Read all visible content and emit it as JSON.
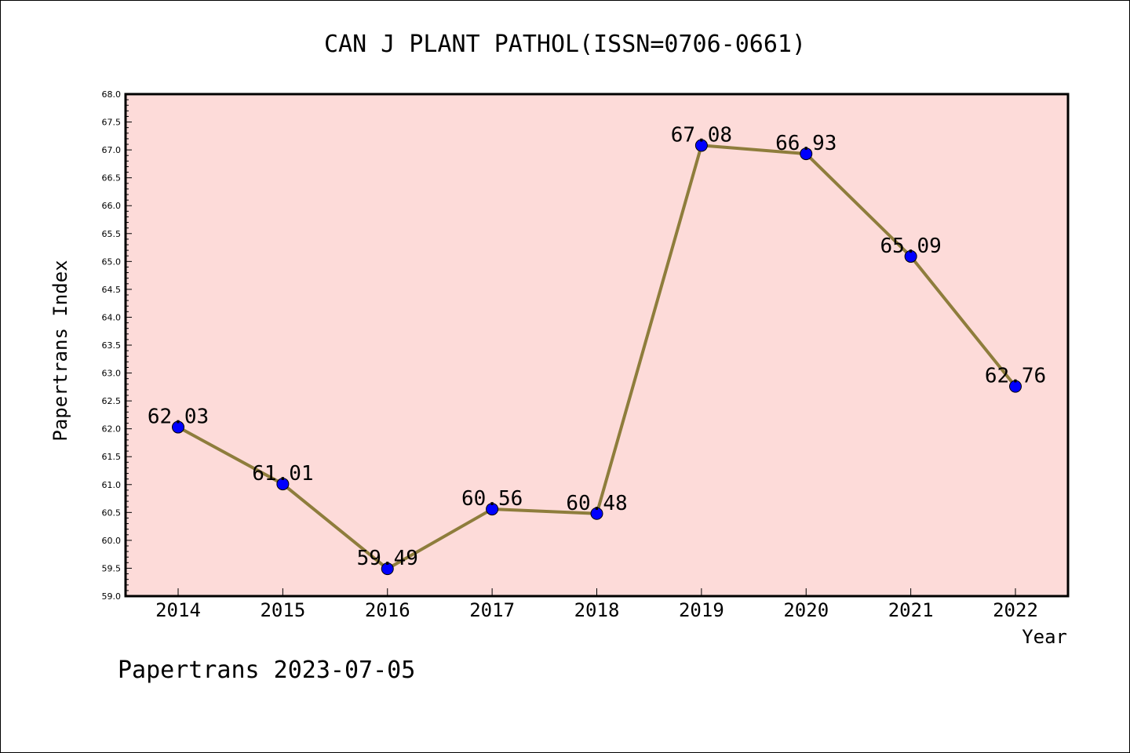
{
  "chart_data": {
    "type": "line",
    "title": "CAN J PLANT PATHOL(ISSN=0706-0661)",
    "xlabel": "Year",
    "ylabel": "Papertrans Index",
    "categories": [
      "2014",
      "2015",
      "2016",
      "2017",
      "2018",
      "2019",
      "2020",
      "2021",
      "2022"
    ],
    "values": [
      62.03,
      61.01,
      59.49,
      60.56,
      60.48,
      67.08,
      66.93,
      65.09,
      62.76
    ],
    "data_labels": [
      "62.03",
      "61.01",
      "59.49",
      "60.56",
      "60.48",
      "67.08",
      "66.93",
      "65.09",
      "62.76"
    ],
    "ylim": [
      59.0,
      68.0
    ],
    "yticks": [
      "59.0",
      "59.5",
      "60.0",
      "60.5",
      "61.0",
      "61.5",
      "62.0",
      "62.5",
      "63.0",
      "63.5",
      "64.0",
      "64.5",
      "65.0",
      "65.5",
      "66.0",
      "66.5",
      "67.0",
      "67.5",
      "68.0"
    ],
    "grid": false,
    "colors": {
      "plot_background": "#fddbd9",
      "line": "#8e7d3c",
      "marker": "#0000ff"
    },
    "footer": "Papertrans 2023-07-05"
  }
}
